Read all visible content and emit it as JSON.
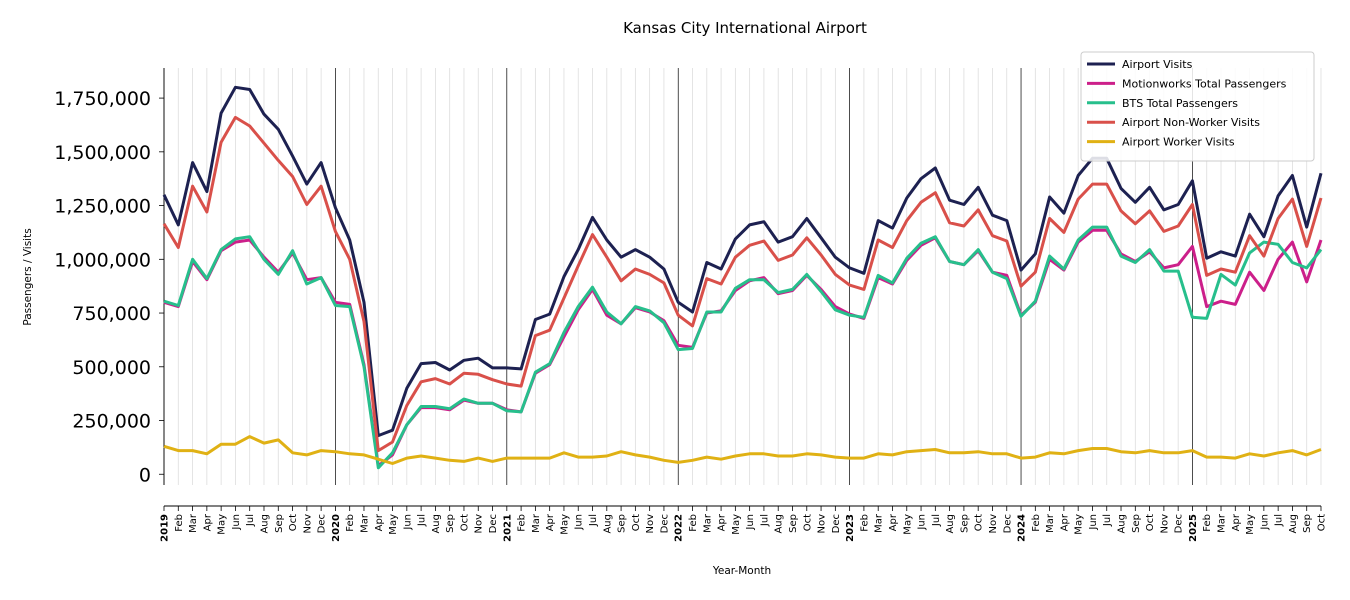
{
  "chart_data": {
    "type": "line",
    "title": "Kansas City International Airport",
    "xlabel": "Year-Month",
    "ylabel": "Passengers / Visits",
    "ylim": [
      -50000,
      1890000
    ],
    "yticks": [
      0,
      250000,
      500000,
      750000,
      1000000,
      1250000,
      1500000,
      1750000
    ],
    "ytick_labels": [
      "0",
      "250,000",
      "500,000",
      "750,000",
      "1,000,000",
      "1,250,000",
      "1,500,000",
      "1,750,000"
    ],
    "grid": "vertical-monthly",
    "legend_position": "top-right",
    "x_start": "2019-01",
    "x_end": "2025-10",
    "month_labels": [
      "Feb",
      "Mar",
      "Apr",
      "May",
      "Jun",
      "Jul",
      "Aug",
      "Sep",
      "Oct",
      "Nov",
      "Dec"
    ],
    "year_labels": [
      "2019",
      "2020",
      "2021",
      "2022",
      "2023",
      "2024",
      "2025"
    ],
    "series": [
      {
        "name": "Airport Visits",
        "color": "#1d2151",
        "values": [
          1300000,
          1160000,
          1450000,
          1315000,
          1680000,
          1800000,
          1790000,
          1675000,
          1605000,
          1480000,
          1350000,
          1450000,
          1240000,
          1090000,
          800000,
          180000,
          205000,
          400000,
          515000,
          520000,
          485000,
          530000,
          540000,
          495000,
          495000,
          490000,
          720000,
          745000,
          920000,
          1045000,
          1195000,
          1090000,
          1010000,
          1045000,
          1010000,
          955000,
          800000,
          755000,
          985000,
          955000,
          1095000,
          1160000,
          1175000,
          1080000,
          1105000,
          1190000,
          1100000,
          1010000,
          960000,
          935000,
          1180000,
          1145000,
          1285000,
          1375000,
          1425000,
          1275000,
          1255000,
          1335000,
          1205000,
          1180000,
          950000,
          1025000,
          1290000,
          1215000,
          1390000,
          1470000,
          1470000,
          1330000,
          1265000,
          1335000,
          1230000,
          1255000,
          1365000,
          1005000,
          1035000,
          1015000,
          1210000,
          1105000,
          1295000,
          1390000,
          1150000,
          1400000
        ]
      },
      {
        "name": "Motionworks Total Passengers",
        "color": "#cc1f8a",
        "values": [
          800000,
          780000,
          990000,
          905000,
          1040000,
          1080000,
          1090000,
          1010000,
          940000,
          1030000,
          905000,
          915000,
          800000,
          790000,
          510000,
          40000,
          90000,
          230000,
          310000,
          310000,
          300000,
          345000,
          330000,
          330000,
          300000,
          290000,
          470000,
          510000,
          640000,
          765000,
          860000,
          740000,
          700000,
          775000,
          755000,
          715000,
          600000,
          590000,
          750000,
          760000,
          855000,
          900000,
          915000,
          840000,
          855000,
          925000,
          860000,
          780000,
          745000,
          725000,
          915000,
          885000,
          995000,
          1065000,
          1100000,
          990000,
          975000,
          1040000,
          940000,
          925000,
          740000,
          800000,
          1000000,
          950000,
          1080000,
          1135000,
          1135000,
          1025000,
          990000,
          1035000,
          960000,
          975000,
          1060000,
          780000,
          805000,
          790000,
          940000,
          855000,
          1000000,
          1080000,
          895000,
          1090000
        ]
      },
      {
        "name": "BTS Total Passengers",
        "color": "#27bf8c",
        "values": [
          805000,
          785000,
          1000000,
          910000,
          1045000,
          1095000,
          1105000,
          1000000,
          930000,
          1040000,
          885000,
          915000,
          785000,
          780000,
          500000,
          30000,
          100000,
          230000,
          315000,
          315000,
          305000,
          350000,
          330000,
          330000,
          295000,
          290000,
          475000,
          515000,
          660000,
          780000,
          870000,
          755000,
          700000,
          780000,
          760000,
          705000,
          580000,
          585000,
          755000,
          755000,
          865000,
          905000,
          905000,
          845000,
          860000,
          930000,
          850000,
          765000,
          740000,
          730000,
          925000,
          890000,
          1005000,
          1075000,
          1105000,
          990000,
          975000,
          1045000,
          940000,
          910000,
          735000,
          805000,
          1015000,
          955000,
          1090000,
          1150000,
          1150000,
          1015000,
          985000,
          1045000,
          945000,
          945000,
          730000,
          725000,
          930000,
          880000,
          1030000,
          1080000,
          1070000,
          985000,
          960000,
          1045000
        ]
      },
      {
        "name": "Airport Non-Worker Visits",
        "color": "#d9504a",
        "values": [
          1165000,
          1055000,
          1340000,
          1220000,
          1545000,
          1660000,
          1620000,
          1540000,
          1460000,
          1385000,
          1255000,
          1340000,
          1130000,
          1000000,
          710000,
          110000,
          150000,
          320000,
          430000,
          445000,
          420000,
          470000,
          465000,
          440000,
          420000,
          410000,
          645000,
          670000,
          820000,
          970000,
          1115000,
          1010000,
          900000,
          955000,
          930000,
          890000,
          740000,
          690000,
          910000,
          885000,
          1010000,
          1065000,
          1085000,
          995000,
          1020000,
          1100000,
          1020000,
          930000,
          880000,
          860000,
          1090000,
          1055000,
          1180000,
          1265000,
          1310000,
          1170000,
          1155000,
          1230000,
          1110000,
          1085000,
          875000,
          940000,
          1190000,
          1125000,
          1280000,
          1350000,
          1350000,
          1225000,
          1165000,
          1225000,
          1130000,
          1155000,
          1255000,
          925000,
          955000,
          940000,
          1110000,
          1015000,
          1190000,
          1280000,
          1060000,
          1285000
        ]
      },
      {
        "name": "Airport Worker Visits",
        "color": "#e0b114",
        "values": [
          130000,
          110000,
          110000,
          95000,
          140000,
          140000,
          175000,
          145000,
          160000,
          100000,
          90000,
          110000,
          105000,
          95000,
          90000,
          70000,
          50000,
          75000,
          85000,
          75000,
          65000,
          60000,
          75000,
          60000,
          75000,
          75000,
          75000,
          75000,
          100000,
          80000,
          80000,
          85000,
          105000,
          90000,
          80000,
          65000,
          55000,
          65000,
          80000,
          70000,
          85000,
          95000,
          95000,
          85000,
          85000,
          95000,
          90000,
          80000,
          75000,
          75000,
          95000,
          90000,
          105000,
          110000,
          115000,
          100000,
          100000,
          105000,
          95000,
          95000,
          75000,
          80000,
          100000,
          95000,
          110000,
          120000,
          120000,
          105000,
          100000,
          110000,
          100000,
          100000,
          110000,
          80000,
          80000,
          75000,
          95000,
          85000,
          100000,
          110000,
          90000,
          115000
        ]
      }
    ]
  }
}
